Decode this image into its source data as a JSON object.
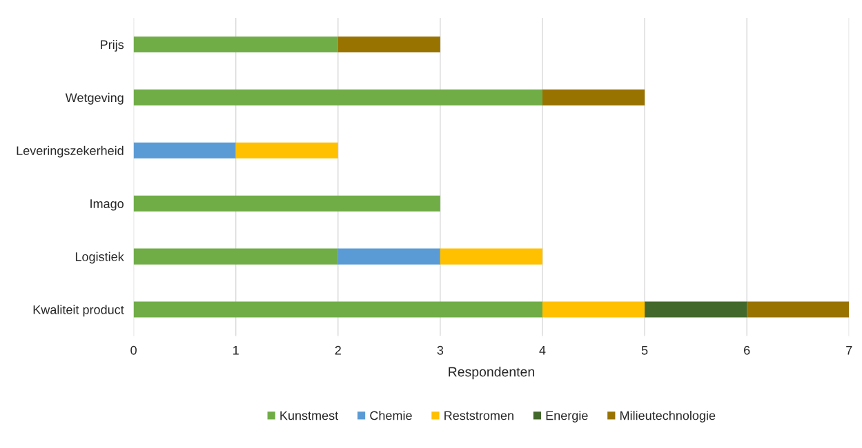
{
  "chart_data": {
    "type": "bar",
    "orientation": "horizontal",
    "stacked": true,
    "xlabel": "Respondenten",
    "categories": [
      "Prijs",
      "Wetgeving",
      "Leveringszekerheid",
      "Imago",
      "Logistiek",
      "Kwaliteit product"
    ],
    "series": [
      {
        "name": "Kunstmest",
        "color": "#70ad47",
        "values": [
          2,
          4,
          0,
          3,
          2,
          4
        ]
      },
      {
        "name": "Chemie",
        "color": "#5b9bd5",
        "values": [
          0,
          0,
          1,
          0,
          1,
          0
        ]
      },
      {
        "name": "Reststromen",
        "color": "#ffc000",
        "values": [
          0,
          0,
          1,
          0,
          1,
          1
        ]
      },
      {
        "name": "Energie",
        "color": "#43682b",
        "values": [
          0,
          0,
          0,
          0,
          0,
          1
        ]
      },
      {
        "name": "Milieutechnologie",
        "color": "#997300",
        "values": [
          1,
          1,
          0,
          0,
          0,
          1
        ]
      }
    ],
    "xlim": [
      0,
      7
    ],
    "xticks": [
      0,
      1,
      2,
      3,
      4,
      5,
      6,
      7
    ],
    "grid": "x",
    "legend": "bottom"
  }
}
